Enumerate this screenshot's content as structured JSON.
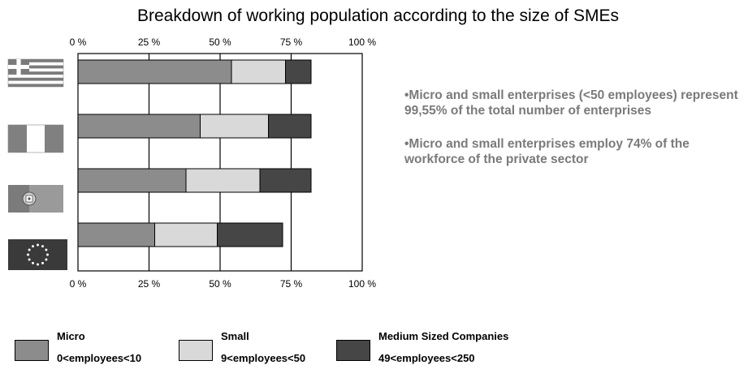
{
  "chart_data": {
    "type": "bar",
    "orientation": "horizontal",
    "stacked": true,
    "title": "Breakdown of working population according to the size of SMEs",
    "categories": [
      "greece-flag",
      "italy-flag",
      "portugal-flag",
      "eu-flag"
    ],
    "series": [
      {
        "name": "Micro",
        "values": [
          54,
          43,
          38,
          27
        ],
        "color": "#8c8c8c"
      },
      {
        "name": "Small",
        "values": [
          19,
          24,
          26,
          22
        ],
        "color": "#d9d9d9"
      },
      {
        "name": "Medium Sized Companies",
        "values": [
          9,
          15,
          18,
          23
        ],
        "color": "#464646"
      }
    ],
    "xlim": [
      0,
      100
    ],
    "x_ticks": [
      "0 %",
      "25 %",
      "50 %",
      "75 %",
      "100 %"
    ],
    "grid": true,
    "legend_position": "bottom"
  },
  "bullets": [
    "•Micro and small enterprises (<50 employees) represent 99,55% of the total number of enterprises",
    "•Micro and small enterprises employ 74% of the workforce of the private sector"
  ],
  "legend": [
    {
      "name": "Micro",
      "range": "0<employees<10",
      "color": "#8c8c8c"
    },
    {
      "name": "Small",
      "range": "9<employees<50",
      "color": "#d9d9d9"
    },
    {
      "name": "Medium Sized Companies",
      "range": "49<employees<250",
      "color": "#464646"
    }
  ]
}
